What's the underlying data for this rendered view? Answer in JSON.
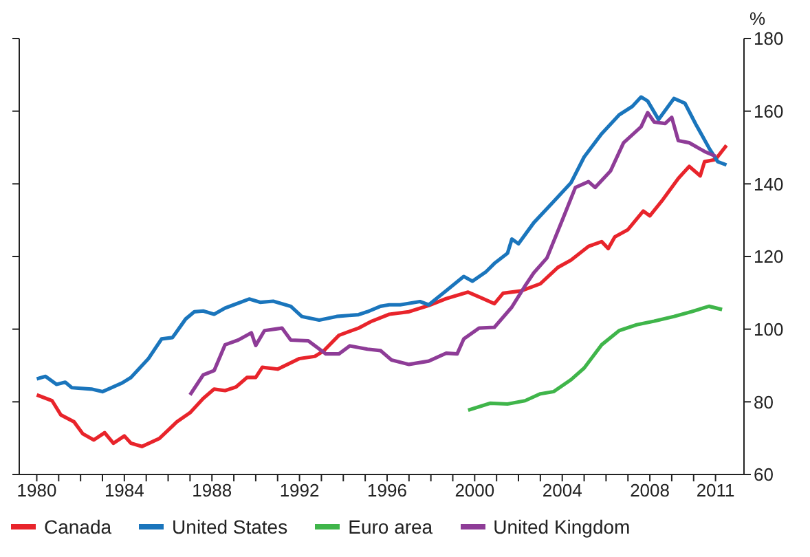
{
  "chart_data": {
    "type": "line",
    "ylabel": "%",
    "legend": "bottom",
    "marker": "none",
    "line_style": "solid",
    "xlim": [
      1979.2,
      2012.3
    ],
    "ylim": [
      60,
      180
    ],
    "yticks": [
      60,
      80,
      100,
      120,
      140,
      160,
      180
    ],
    "xticks": [
      1980,
      {
        "value": 1981,
        "label": null
      },
      {
        "value": 1982,
        "label": null
      },
      {
        "value": 1983,
        "label": null
      },
      1984,
      {
        "value": 1985,
        "label": null
      },
      {
        "value": 1986,
        "label": null
      },
      {
        "value": 1987,
        "label": null
      },
      1988,
      {
        "value": 1989,
        "label": null
      },
      {
        "value": 1990,
        "label": null
      },
      {
        "value": 1991,
        "label": null
      },
      1992,
      {
        "value": 1993,
        "label": null
      },
      {
        "value": 1994,
        "label": null
      },
      {
        "value": 1995,
        "label": null
      },
      1996,
      {
        "value": 1997,
        "label": null
      },
      {
        "value": 1998,
        "label": null
      },
      {
        "value": 1999,
        "label": null
      },
      2000,
      {
        "value": 2001,
        "label": null
      },
      {
        "value": 2002,
        "label": null
      },
      {
        "value": 2003,
        "label": null
      },
      2004,
      {
        "value": 2005,
        "label": null
      },
      {
        "value": 2006,
        "label": null
      },
      {
        "value": 2007,
        "label": null
      },
      2008,
      {
        "value": 2009,
        "label": null
      },
      {
        "value": 2010,
        "label": null
      },
      2011
    ],
    "series": [
      {
        "name": "Canada",
        "color": "#e8242b",
        "x": [
          1980,
          1980.7,
          1981.1,
          1981.7,
          1982.1,
          1982.6,
          1983.1,
          1983.5,
          1984.0,
          1984.3,
          1984.8,
          1985.6,
          1986.4,
          1987.0,
          1987.6,
          1988.1,
          1988.6,
          1989.1,
          1989.6,
          1990.0,
          1990.3,
          1991.0,
          1992.0,
          1992.7,
          1993.1,
          1993.8,
          1994.7,
          1995.3,
          1996.1,
          1997.0,
          1997.9,
          1998.7,
          1999.7,
          2000.3,
          2000.9,
          2001.3,
          2002.1,
          2003.0,
          2003.8,
          2004.4,
          2005.2,
          2005.8,
          2006.1,
          2006.4,
          2007.0,
          2007.7,
          2008.0,
          2008.6,
          2009.3,
          2009.8,
          2010.3,
          2010.5,
          2011.0,
          2011.5
        ],
        "values": [
          81.9,
          80.3,
          76.4,
          74.5,
          71.2,
          69.5,
          71.5,
          68.6,
          70.6,
          68.6,
          67.7,
          69.9,
          74.5,
          77.0,
          80.9,
          83.5,
          83.1,
          84.1,
          86.7,
          86.7,
          89.5,
          89.0,
          91.9,
          92.5,
          94.0,
          98.3,
          100.3,
          102.2,
          104.1,
          104.8,
          106.5,
          108.4,
          110.2,
          108.6,
          107.0,
          109.9,
          110.5,
          112.5,
          117.0,
          119.0,
          122.8,
          124.1,
          122.2,
          125.4,
          127.4,
          132.5,
          131.2,
          135.7,
          141.5,
          144.8,
          142.2,
          146.1,
          146.7,
          150.6
        ]
      },
      {
        "name": "United States",
        "color": "#1a75bc",
        "x": [
          1980,
          1980.4,
          1980.9,
          1981.3,
          1981.6,
          1982.5,
          1983.0,
          1983.9,
          1984.3,
          1984.7,
          1985.1,
          1985.7,
          1986.2,
          1986.8,
          1987.2,
          1987.6,
          1988.1,
          1988.6,
          1989.0,
          1989.7,
          1990.2,
          1990.8,
          1991.6,
          1992.1,
          1992.9,
          1993.7,
          1994.7,
          1995.1,
          1995.7,
          1996.1,
          1996.6,
          1997.5,
          1997.9,
          1998.7,
          1999.5,
          1999.9,
          2000.5,
          2000.9,
          2001.5,
          2001.7,
          2002.0,
          2002.7,
          2003.6,
          2004.4,
          2005.0,
          2005.8,
          2006.6,
          2007.2,
          2007.6,
          2007.9,
          2008.4,
          2009.1,
          2009.6,
          2010.1,
          2010.7,
          2011.1,
          2011.5
        ],
        "values": [
          86.3,
          87.0,
          84.8,
          85.4,
          83.9,
          83.5,
          82.8,
          85.2,
          86.7,
          89.3,
          91.9,
          97.3,
          97.7,
          102.8,
          104.8,
          105.0,
          104.1,
          105.8,
          106.7,
          108.3,
          107.4,
          107.7,
          106.3,
          103.5,
          102.5,
          103.5,
          104.0,
          104.8,
          106.3,
          106.7,
          106.7,
          107.6,
          106.7,
          110.6,
          114.5,
          113.2,
          115.7,
          118.1,
          120.9,
          124.8,
          123.5,
          129.3,
          135.1,
          140.3,
          147.4,
          153.8,
          159.0,
          161.3,
          163.9,
          162.8,
          157.7,
          163.5,
          162.2,
          156.4,
          149.9,
          146.1,
          145.2
        ]
      },
      {
        "name": "Euro area",
        "color": "#3fb54a",
        "x": [
          1999.7,
          2000.7,
          2001.5,
          2002.3,
          2003.0,
          2003.6,
          2004.4,
          2005.0,
          2005.8,
          2006.6,
          2007.4,
          2008.2,
          2009.1,
          2009.9,
          2010.7,
          2011.3
        ],
        "values": [
          77.7,
          79.6,
          79.4,
          80.3,
          82.2,
          82.8,
          86.1,
          89.3,
          95.7,
          99.6,
          101.2,
          102.2,
          103.5,
          104.8,
          106.3,
          105.4
        ]
      },
      {
        "name": "United Kingdom",
        "color": "#8e3c97",
        "x": [
          1987.0,
          1987.6,
          1988.1,
          1988.6,
          1989.2,
          1989.8,
          1990.0,
          1990.4,
          1991.2,
          1991.6,
          1992.4,
          1993.2,
          1993.8,
          1994.3,
          1995.1,
          1995.7,
          1996.2,
          1997.0,
          1997.9,
          1998.7,
          1999.2,
          1999.5,
          2000.2,
          2000.9,
          2001.7,
          2002.3,
          2002.7,
          2003.3,
          2004.0,
          2004.6,
          2005.2,
          2005.5,
          2006.2,
          2006.8,
          2007.6,
          2007.9,
          2008.2,
          2008.7,
          2009.0,
          2009.3,
          2009.8,
          2010.5,
          2011.0
        ],
        "values": [
          81.9,
          87.4,
          88.6,
          95.7,
          97.0,
          99.0,
          95.5,
          99.6,
          100.3,
          97.0,
          96.8,
          93.2,
          93.2,
          95.4,
          94.5,
          94.1,
          91.5,
          90.3,
          91.2,
          93.4,
          93.2,
          97.3,
          100.3,
          100.5,
          106.1,
          111.9,
          115.5,
          119.6,
          130.0,
          139.0,
          140.6,
          139.0,
          143.5,
          151.3,
          155.7,
          159.6,
          157.0,
          156.6,
          158.3,
          151.9,
          151.3,
          148.9,
          147.6
        ]
      }
    ]
  }
}
